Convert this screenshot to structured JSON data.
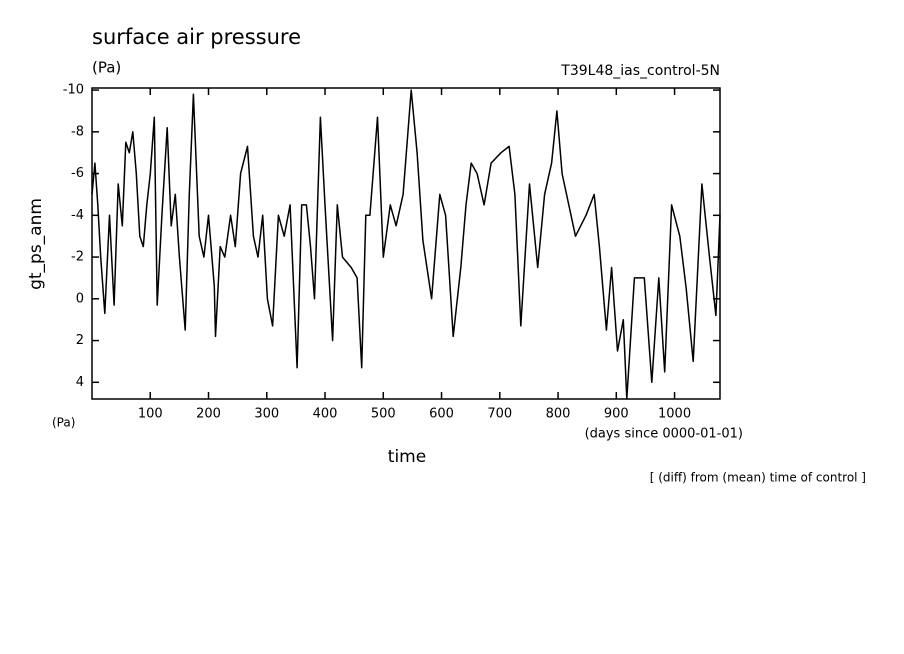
{
  "chart_data": {
    "type": "line",
    "title": "surface air pressure",
    "unit_label": "(Pa)",
    "subtitle": "T39L48_ias_control-5N",
    "ylabel": "gt_ps_anm",
    "y_unit_label": "(Pa)",
    "xlabel": "time",
    "x_unit_label": "(days since 0000-01-01)",
    "note": "[ (diff) from (mean) time of control ]",
    "xlim": [
      0,
      1078
    ],
    "ylim": [
      4.8,
      -10.1
    ],
    "xticks": [
      100,
      200,
      300,
      400,
      500,
      600,
      700,
      800,
      900,
      1000
    ],
    "yticks": [
      -10,
      -8,
      -6,
      -4,
      -2,
      0,
      2,
      4
    ],
    "x": [
      0,
      5,
      10,
      15,
      22,
      30,
      38,
      45,
      52,
      58,
      64,
      70,
      76,
      82,
      88,
      94,
      100,
      107,
      112,
      120,
      129,
      136,
      143,
      150,
      160,
      167,
      174,
      184,
      192,
      200,
      210,
      212,
      220,
      228,
      238,
      246,
      255,
      267,
      277,
      285,
      293,
      301,
      310,
      320,
      330,
      340,
      352,
      360,
      368,
      375,
      382,
      392,
      400,
      413,
      421,
      430,
      445,
      455,
      463,
      470,
      477,
      490,
      500,
      512,
      522,
      534,
      548,
      558,
      568,
      583,
      597,
      607,
      620,
      633,
      642,
      651,
      661,
      673,
      685,
      702,
      716,
      726,
      736,
      751,
      765,
      777,
      789,
      798,
      807,
      830,
      848,
      862,
      871,
      883,
      892,
      902,
      912,
      918,
      931,
      948,
      961,
      973,
      983,
      995,
      1009,
      1020,
      1032,
      1047,
      1060,
      1071,
      1078
    ],
    "values": [
      -5,
      -6.5,
      -4.5,
      -2,
      0.7,
      -4,
      0.3,
      -5.5,
      -3.5,
      -7.5,
      -7,
      -8,
      -6,
      -3,
      -2.5,
      -4.5,
      -6,
      -8.7,
      0.3,
      -4,
      -8.2,
      -3.5,
      -5,
      -2,
      1.5,
      -5,
      -9.8,
      -3,
      -2,
      -4,
      -0.6,
      1.8,
      -2.5,
      -2,
      -4,
      -2.5,
      -6,
      -7.3,
      -3,
      -2,
      -4,
      0,
      1.3,
      -4,
      -3,
      -4.5,
      3.3,
      -4.5,
      -4.5,
      -2.5,
      0,
      -8.7,
      -4.5,
      2,
      -4.5,
      -2,
      -1.5,
      -1,
      3.3,
      -4,
      -4,
      -8.7,
      -2,
      -4.5,
      -3.5,
      -5,
      -10,
      -7,
      -2.8,
      0,
      -5,
      -4,
      1.8,
      -1.5,
      -4.5,
      -6.5,
      -6,
      -4.5,
      -6.5,
      -7,
      -7.3,
      -5,
      1.3,
      -5.5,
      -1.5,
      -5,
      -6.5,
      -9,
      -6,
      -3,
      -4,
      -5,
      -2.5,
      1.5,
      -1.5,
      2.5,
      1,
      4.8,
      -1,
      -1,
      4,
      -1,
      3.5,
      -4.5,
      -3,
      -0.5,
      3,
      -5.5,
      -2,
      0.8,
      -4
    ],
    "color": "#000000"
  }
}
